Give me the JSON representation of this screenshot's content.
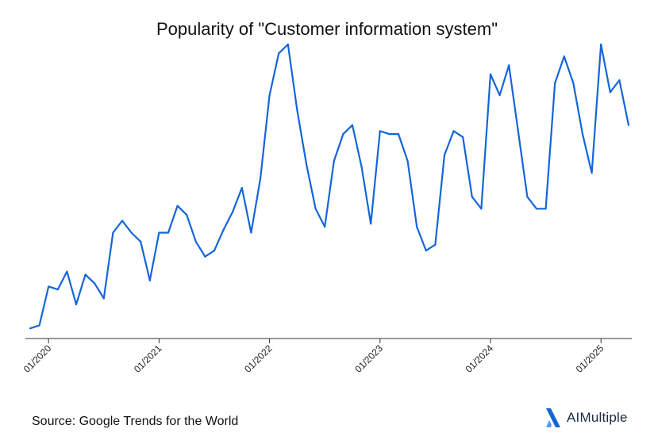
{
  "chart_data": {
    "type": "line",
    "title": "Popularity of \"Customer information system\"",
    "xlabel": "",
    "ylabel": "",
    "grid": false,
    "x_tick_labels": [
      "01/2020",
      "01/2021",
      "01/2022",
      "01/2023",
      "01/2024",
      "01/2025"
    ],
    "ylim": [
      0,
      100
    ],
    "series": [
      {
        "color": "#1565d8",
        "x": [
          "2019-11",
          "2019-12",
          "2020-01",
          "2020-02",
          "2020-03",
          "2020-04",
          "2020-05",
          "2020-06",
          "2020-07",
          "2020-08",
          "2020-09",
          "2020-10",
          "2020-11",
          "2020-12",
          "2021-01",
          "2021-02",
          "2021-03",
          "2021-04",
          "2021-05",
          "2021-06",
          "2021-07",
          "2021-08",
          "2021-09",
          "2021-10",
          "2021-11",
          "2021-12",
          "2022-01",
          "2022-02",
          "2022-03",
          "2022-04",
          "2022-05",
          "2022-06",
          "2022-07",
          "2022-08",
          "2022-09",
          "2022-10",
          "2022-11",
          "2022-12",
          "2023-01",
          "2023-02",
          "2023-03",
          "2023-04",
          "2023-05",
          "2023-06",
          "2023-07",
          "2023-08",
          "2023-09",
          "2023-10",
          "2023-11",
          "2023-12",
          "2024-01",
          "2024-02",
          "2024-03",
          "2024-04",
          "2024-05",
          "2024-06",
          "2024-07",
          "2024-08",
          "2024-09",
          "2024-10",
          "2024-11",
          "2024-12",
          "2025-01",
          "2025-02",
          "2025-03",
          "2025-04"
        ],
        "values": [
          5,
          6,
          19,
          18,
          24,
          13,
          23,
          20,
          15,
          37,
          41,
          37,
          34,
          21,
          37,
          37,
          46,
          43,
          34,
          29,
          31,
          38,
          44,
          52,
          37,
          55,
          83,
          97,
          100,
          78,
          60,
          45,
          39,
          61,
          70,
          73,
          59,
          40,
          71,
          70,
          70,
          61,
          39,
          31,
          33,
          63,
          71,
          69,
          49,
          45,
          90,
          83,
          93,
          71,
          49,
          45,
          45,
          87,
          96,
          87,
          70,
          57,
          100,
          84,
          88,
          73
        ]
      }
    ]
  },
  "source": "Source: Google Trends for the World",
  "brand": {
    "name": "AIMultiple",
    "icon": "aimultiple-logo-icon",
    "color": "#1565d8"
  }
}
